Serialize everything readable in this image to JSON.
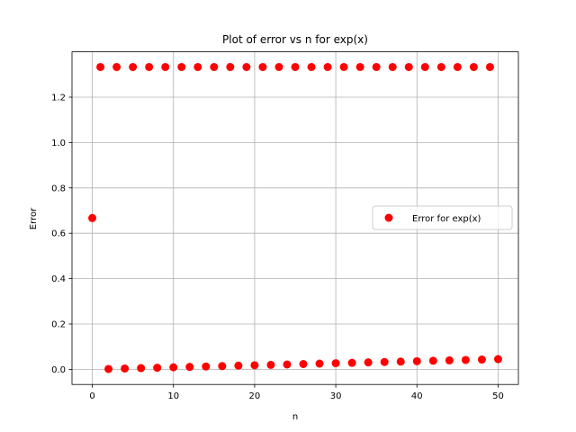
{
  "chart_data": {
    "type": "scatter",
    "title": "Plot of error vs n for exp(x)",
    "xlabel": "n",
    "ylabel": "Error",
    "xlim": [
      -2.5,
      52.5
    ],
    "ylim": [
      -0.0667,
      1.4
    ],
    "x_ticks": [
      0,
      10,
      20,
      30,
      40,
      50
    ],
    "y_ticks": [
      0.0,
      0.2,
      0.4,
      0.6,
      0.8,
      1.0,
      1.2
    ],
    "x_tick_labels": [
      "0",
      "10",
      "20",
      "30",
      "40",
      "50"
    ],
    "y_tick_labels": [
      "0.0",
      "0.2",
      "0.4",
      "0.6",
      "0.8",
      "1.0",
      "1.2"
    ],
    "grid": true,
    "legend_position": "center-right",
    "series": [
      {
        "name": "Error for exp(x)",
        "color": "#ff0000",
        "x": [
          0,
          1,
          2,
          3,
          4,
          5,
          6,
          7,
          8,
          9,
          10,
          11,
          12,
          13,
          14,
          15,
          16,
          17,
          18,
          19,
          20,
          21,
          22,
          23,
          24,
          25,
          26,
          27,
          28,
          29,
          30,
          31,
          32,
          33,
          34,
          35,
          36,
          37,
          38,
          39,
          40,
          41,
          42,
          43,
          44,
          45,
          46,
          47,
          48,
          49,
          50
        ],
        "y": [
          0.667,
          1.333,
          0.0018,
          1.333,
          0.0036,
          1.333,
          0.0054,
          1.333,
          0.0072,
          1.333,
          0.009,
          1.333,
          0.0108,
          1.333,
          0.0126,
          1.333,
          0.0144,
          1.333,
          0.0162,
          1.333,
          0.018,
          1.333,
          0.0198,
          1.333,
          0.0216,
          1.333,
          0.0234,
          1.333,
          0.0252,
          1.333,
          0.027,
          1.333,
          0.0288,
          1.333,
          0.0306,
          1.333,
          0.0324,
          1.333,
          0.0342,
          1.333,
          0.036,
          1.333,
          0.0378,
          1.333,
          0.0396,
          1.333,
          0.0414,
          1.333,
          0.0432,
          1.333,
          0.045
        ]
      }
    ]
  }
}
